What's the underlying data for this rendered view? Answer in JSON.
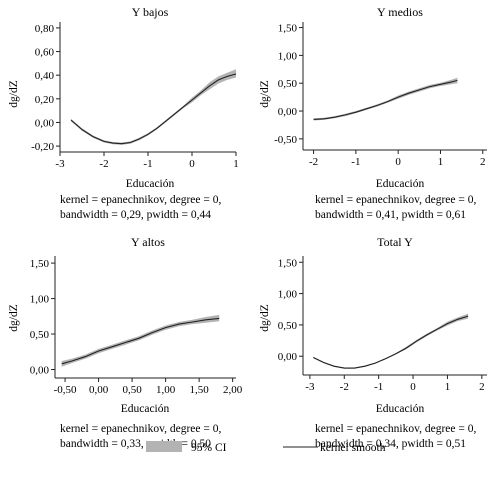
{
  "figure": {
    "panels": [
      {
        "title": "Y bajos",
        "xlabel": "Educación",
        "ylabel": "dg/dZ",
        "note_lines": [
          "kernel = epanechnikov, degree = 0,",
          "bandwidth = 0,29, pwidth = 0,44"
        ]
      },
      {
        "title": "Y medios",
        "xlabel": "Educación",
        "ylabel": "dg/dZ",
        "note_lines": [
          "kernel = epanechnikov, degree = 0,",
          "bandwidth = 0,41, pwidth = 0,61"
        ]
      },
      {
        "title": "Y altos",
        "xlabel": "Educación",
        "ylabel": "dg/dZ",
        "note_lines": [
          "kernel = epanechnikov, degree = 0,",
          "bandwidth = 0,33, pwidth = 0,50"
        ]
      },
      {
        "title": "Total Y",
        "xlabel": "Educación",
        "ylabel": "dg/dZ",
        "note_lines": [
          "kernel = epanechnikov, degree = 0,",
          "bandwidth = 0,34, pwidth = 0,51"
        ]
      }
    ],
    "legend": {
      "ci_label": "95% CI",
      "line_label": "kernel smooth",
      "ci_color": "#b3b3b3",
      "line_color": "#222222"
    }
  },
  "chart_data": [
    {
      "type": "line",
      "title": "Y bajos",
      "xlabel": "Educación",
      "ylabel": "dg/dZ",
      "xlim": [
        -3,
        1
      ],
      "ylim": [
        -0.25,
        0.85
      ],
      "xticks": [
        -3,
        -2,
        -1,
        0,
        1
      ],
      "xtick_labels": [
        "-3",
        "-2",
        "-1",
        "0",
        "1"
      ],
      "yticks": [
        -0.2,
        0,
        0.2,
        0.4,
        0.6,
        0.8
      ],
      "ytick_labels": [
        "-0,20",
        "0,00",
        "0,20",
        "0,40",
        "0,60",
        "0,80"
      ],
      "series": [
        {
          "name": "kernel smooth",
          "x": [
            -2.75,
            -2.5,
            -2.25,
            -2.0,
            -1.8,
            -1.6,
            -1.4,
            -1.2,
            -1.0,
            -0.8,
            -0.6,
            -0.4,
            -0.2,
            0.0,
            0.2,
            0.4,
            0.6,
            0.8,
            1.0
          ],
          "y": [
            0.02,
            -0.06,
            -0.12,
            -0.16,
            -0.175,
            -0.18,
            -0.17,
            -0.14,
            -0.1,
            -0.05,
            0.01,
            0.07,
            0.13,
            0.19,
            0.25,
            0.31,
            0.36,
            0.39,
            0.41
          ]
        },
        {
          "name": "95% CI",
          "x": [
            -2.75,
            -2.5,
            -2.25,
            -2.0,
            -1.8,
            -1.6,
            -1.4,
            -1.2,
            -1.0,
            -0.8,
            -0.6,
            -0.4,
            -0.2,
            0.0,
            0.2,
            0.4,
            0.6,
            0.8,
            1.0
          ],
          "lower": [
            0.01,
            -0.07,
            -0.13,
            -0.17,
            -0.185,
            -0.19,
            -0.18,
            -0.15,
            -0.11,
            -0.06,
            0.0,
            0.06,
            0.12,
            0.17,
            0.23,
            0.28,
            0.33,
            0.36,
            0.38
          ],
          "upper": [
            0.03,
            -0.05,
            -0.11,
            -0.15,
            -0.165,
            -0.17,
            -0.16,
            -0.13,
            -0.09,
            -0.04,
            0.02,
            0.08,
            0.14,
            0.21,
            0.27,
            0.34,
            0.39,
            0.42,
            0.45
          ]
        }
      ]
    },
    {
      "type": "line",
      "title": "Y medios",
      "xlabel": "Educación",
      "ylabel": "dg/dZ",
      "xlim": [
        -2.25,
        2.1
      ],
      "ylim": [
        -0.7,
        1.6
      ],
      "xticks": [
        -2,
        -1,
        0,
        1,
        2
      ],
      "xtick_labels": [
        "-2",
        "-1",
        "0",
        "1",
        "2"
      ],
      "yticks": [
        -0.5,
        0,
        0.5,
        1.0,
        1.5
      ],
      "ytick_labels": [
        "-0,50",
        "0,00",
        "0,50",
        "1,00",
        "1,50"
      ],
      "series": [
        {
          "name": "kernel smooth",
          "x": [
            -2.0,
            -1.75,
            -1.5,
            -1.25,
            -1.0,
            -0.75,
            -0.5,
            -0.25,
            0.0,
            0.25,
            0.5,
            0.75,
            1.0,
            1.25,
            1.4
          ],
          "y": [
            -0.15,
            -0.14,
            -0.11,
            -0.07,
            -0.02,
            0.04,
            0.1,
            0.17,
            0.25,
            0.32,
            0.38,
            0.44,
            0.48,
            0.52,
            0.55
          ]
        },
        {
          "name": "95% CI",
          "x": [
            -2.0,
            -1.75,
            -1.5,
            -1.25,
            -1.0,
            -0.75,
            -0.5,
            -0.25,
            0.0,
            0.25,
            0.5,
            0.75,
            1.0,
            1.25,
            1.4
          ],
          "lower": [
            -0.17,
            -0.16,
            -0.13,
            -0.09,
            -0.04,
            0.02,
            0.08,
            0.15,
            0.22,
            0.29,
            0.35,
            0.41,
            0.45,
            0.48,
            0.5
          ],
          "upper": [
            -0.13,
            -0.12,
            -0.09,
            -0.05,
            0.0,
            0.06,
            0.12,
            0.19,
            0.28,
            0.35,
            0.41,
            0.47,
            0.51,
            0.56,
            0.6
          ]
        }
      ]
    },
    {
      "type": "line",
      "title": "Y altos",
      "xlabel": "Educación",
      "ylabel": "dg/dZ",
      "xlim": [
        -0.65,
        2.05
      ],
      "ylim": [
        -0.12,
        1.6
      ],
      "xticks": [
        -0.5,
        0,
        0.5,
        1.0,
        1.5,
        2.0
      ],
      "xtick_labels": [
        "-0,50",
        "0,00",
        "0,50",
        "1,00",
        "1,50",
        "2,00"
      ],
      "yticks": [
        0,
        0.5,
        1.0,
        1.5
      ],
      "ytick_labels": [
        "0,00",
        "0,50",
        "1,00",
        "1,50"
      ],
      "series": [
        {
          "name": "kernel smooth",
          "x": [
            -0.55,
            -0.4,
            -0.2,
            0.0,
            0.2,
            0.4,
            0.6,
            0.8,
            1.0,
            1.2,
            1.4,
            1.6,
            1.8
          ],
          "y": [
            0.08,
            0.12,
            0.18,
            0.26,
            0.32,
            0.38,
            0.44,
            0.52,
            0.59,
            0.64,
            0.67,
            0.7,
            0.72
          ]
        },
        {
          "name": "95% CI",
          "x": [
            -0.55,
            -0.4,
            -0.2,
            0.0,
            0.2,
            0.4,
            0.6,
            0.8,
            1.0,
            1.2,
            1.4,
            1.6,
            1.8
          ],
          "lower": [
            0.04,
            0.09,
            0.15,
            0.23,
            0.29,
            0.35,
            0.41,
            0.49,
            0.56,
            0.61,
            0.64,
            0.66,
            0.68
          ],
          "upper": [
            0.12,
            0.15,
            0.21,
            0.29,
            0.35,
            0.41,
            0.47,
            0.55,
            0.62,
            0.67,
            0.7,
            0.74,
            0.77
          ]
        }
      ]
    },
    {
      "type": "line",
      "title": "Total Y",
      "xlabel": "Educación",
      "ylabel": "dg/dZ",
      "xlim": [
        -3.2,
        2.15
      ],
      "ylim": [
        -0.3,
        1.6
      ],
      "xticks": [
        -3,
        -2,
        -1,
        0,
        1,
        2
      ],
      "xtick_labels": [
        "-3",
        "-2",
        "-1",
        "0",
        "1",
        "2"
      ],
      "yticks": [
        0,
        0.5,
        1.0,
        1.5
      ],
      "ytick_labels": [
        "0,00",
        "0,50",
        "1,00",
        "1,50"
      ],
      "series": [
        {
          "name": "kernel smooth",
          "x": [
            -2.9,
            -2.6,
            -2.3,
            -2.0,
            -1.7,
            -1.4,
            -1.1,
            -0.8,
            -0.5,
            -0.2,
            0.1,
            0.4,
            0.7,
            1.0,
            1.3,
            1.6
          ],
          "y": [
            -0.02,
            -0.1,
            -0.16,
            -0.19,
            -0.19,
            -0.16,
            -0.11,
            -0.04,
            0.04,
            0.13,
            0.24,
            0.34,
            0.43,
            0.52,
            0.59,
            0.64
          ]
        },
        {
          "name": "95% CI",
          "x": [
            -2.9,
            -2.6,
            -2.3,
            -2.0,
            -1.7,
            -1.4,
            -1.1,
            -0.8,
            -0.5,
            -0.2,
            0.1,
            0.4,
            0.7,
            1.0,
            1.3,
            1.6
          ],
          "lower": [
            -0.03,
            -0.11,
            -0.17,
            -0.2,
            -0.2,
            -0.17,
            -0.12,
            -0.05,
            0.03,
            0.11,
            0.22,
            0.32,
            0.41,
            0.49,
            0.56,
            0.6
          ],
          "upper": [
            -0.01,
            -0.09,
            -0.15,
            -0.18,
            -0.18,
            -0.15,
            -0.1,
            -0.03,
            0.05,
            0.15,
            0.26,
            0.36,
            0.45,
            0.55,
            0.62,
            0.68
          ]
        }
      ]
    }
  ]
}
